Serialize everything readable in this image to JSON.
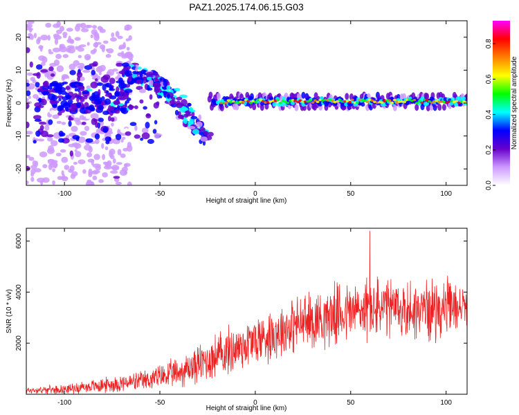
{
  "title": "PAZ1.2025.174.06.15.G03",
  "chart_data": [
    {
      "type": "heatmap",
      "title": "PAZ1.2025.174.06.15.G03",
      "xlabel": "Height of straight line (km)",
      "ylabel": "Frequency (Hz)",
      "xlim": [
        -120,
        111
      ],
      "ylim": [
        -25,
        25
      ],
      "x_ticks": [
        -100,
        -50,
        0,
        50,
        100
      ],
      "y_ticks": [
        -20,
        -10,
        0,
        10,
        20
      ],
      "colorbar": {
        "label": "Normalized spectral amplitude",
        "range": [
          0,
          0.93
        ],
        "ticks": [
          0.0,
          0.2,
          0.4,
          0.6,
          0.8
        ],
        "colormap": [
          "#ffffff",
          "#cc99ff",
          "#6600cc",
          "#0000ff",
          "#00ffff",
          "#00ff00",
          "#ffff00",
          "#ff7f00",
          "#ff0000",
          "#ff00ff"
        ]
      },
      "ridge": [
        {
          "x": -22,
          "freq": 0.5
        },
        {
          "x": 0,
          "freq": 0.5
        },
        {
          "x": 25,
          "freq": 0.5
        },
        {
          "x": 50,
          "freq": 0.5
        },
        {
          "x": 75,
          "freq": 0.5
        },
        {
          "x": 100,
          "freq": 0.5
        },
        {
          "x": 111,
          "freq": 0.5
        }
      ],
      "descending_branch": [
        {
          "x": -68,
          "freq": 10
        },
        {
          "x": -55,
          "freq": 7
        },
        {
          "x": -45,
          "freq": 3
        },
        {
          "x": -35,
          "freq": -4
        },
        {
          "x": -26,
          "freq": -11
        }
      ],
      "grid": false
    },
    {
      "type": "line",
      "xlabel": "Height of straight line (km)",
      "ylabel": "SNR (10 * v/v)",
      "xlim": [
        -120,
        111
      ],
      "ylim": [
        0,
        6500
      ],
      "x_ticks": [
        -100,
        -50,
        0,
        50,
        100
      ],
      "y_ticks": [
        2000,
        4000,
        6000
      ],
      "color": "#ee2222",
      "envelope": [
        {
          "x": -120,
          "mean": 150,
          "spread": 150
        },
        {
          "x": -100,
          "mean": 200,
          "spread": 200
        },
        {
          "x": -80,
          "mean": 350,
          "spread": 350
        },
        {
          "x": -60,
          "mean": 500,
          "spread": 450
        },
        {
          "x": -40,
          "mean": 850,
          "spread": 700
        },
        {
          "x": -20,
          "mean": 1500,
          "spread": 1100
        },
        {
          "x": 0,
          "mean": 2100,
          "spread": 1200
        },
        {
          "x": 20,
          "mean": 2700,
          "spread": 1300
        },
        {
          "x": 40,
          "mean": 3100,
          "spread": 1400
        },
        {
          "x": 60,
          "mean": 3350,
          "spread": 1500
        },
        {
          "x": 80,
          "mean": 3300,
          "spread": 1400
        },
        {
          "x": 100,
          "mean": 3350,
          "spread": 1400
        },
        {
          "x": 111,
          "mean": 3450,
          "spread": 800
        }
      ],
      "peak": {
        "x": 60,
        "y": 6400
      },
      "grid": false
    }
  ]
}
